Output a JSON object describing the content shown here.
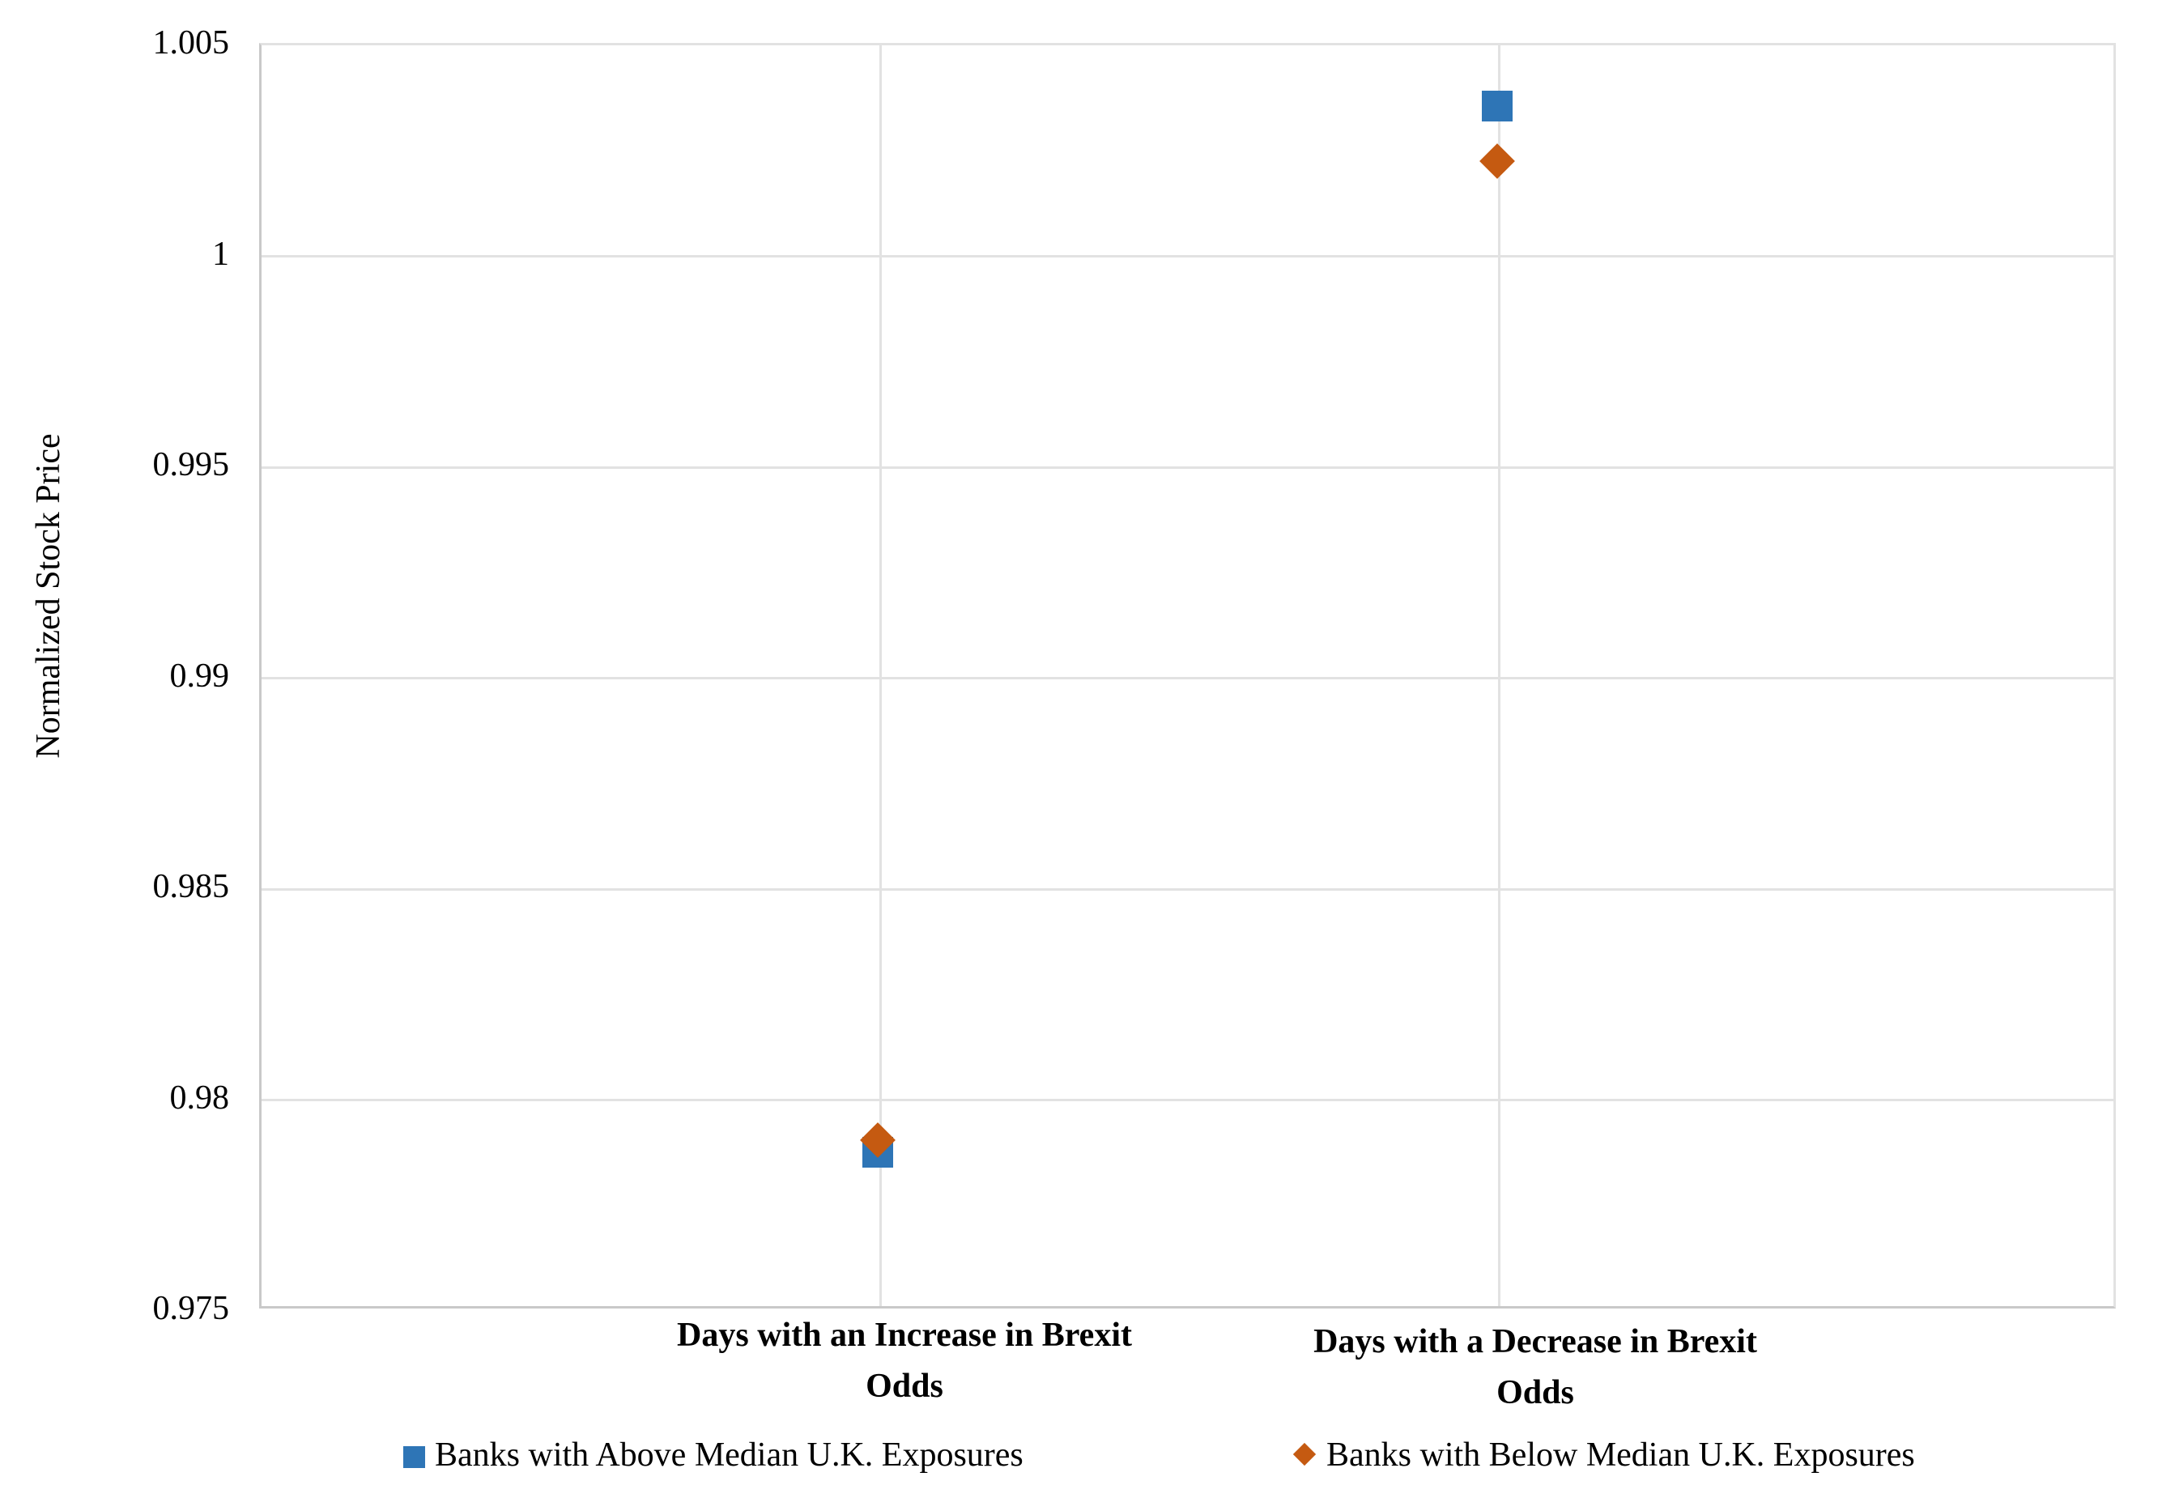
{
  "chart_data": {
    "type": "scatter",
    "title": "",
    "ylabel": "Normalized Stock Price",
    "xlabel": "",
    "categories": [
      "Days with an Increase in Brexit Odds",
      "Days with a Decrease in Brexit Odds"
    ],
    "series": [
      {
        "name": "Banks with Above Median U.K. Exposures",
        "marker": "square",
        "color": "#2E75B6",
        "values": [
          0.9787,
          1.0035
        ]
      },
      {
        "name": "Banks with Below Median U.K. Exposures",
        "marker": "diamond",
        "color": "#C55A11",
        "values": [
          0.979,
          1.0022
        ]
      }
    ],
    "ylim": [
      0.975,
      1.005
    ],
    "ytick_labels": [
      "1.005",
      "1",
      "0.995",
      "0.99",
      "0.985",
      "0.98",
      "0.975"
    ],
    "x_gridline_divisions": 3,
    "grid": true,
    "legend_position": "bottom",
    "grid_color": "#E2E2E2",
    "axis_color": "#C9C9C9"
  }
}
